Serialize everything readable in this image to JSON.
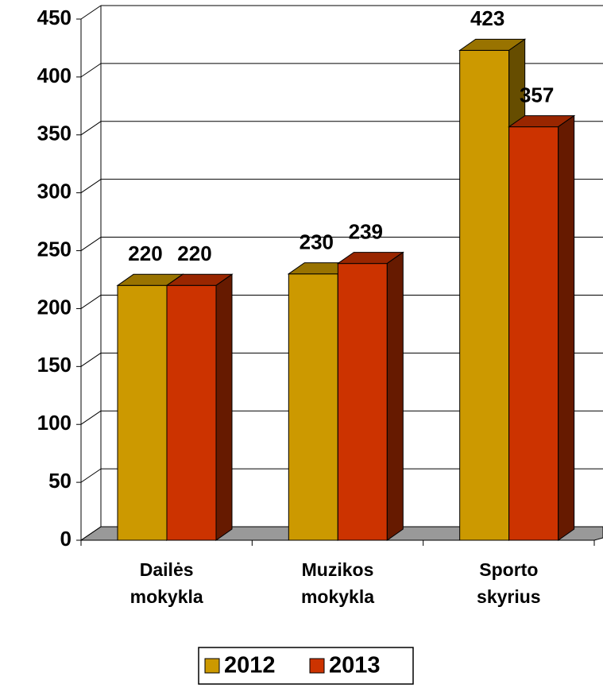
{
  "chart_data": {
    "type": "bar3d",
    "categories": [
      "Dailės mokykla",
      "Muzikos mokykla",
      "Sporto skyrius"
    ],
    "series": [
      {
        "name": "2012",
        "color": "#cc9900",
        "values": [
          220,
          230,
          423
        ]
      },
      {
        "name": "2013",
        "color": "#cc3300",
        "values": [
          220,
          239,
          357
        ]
      }
    ],
    "ylim": [
      0,
      450
    ],
    "yticks": [
      0,
      50,
      100,
      150,
      200,
      250,
      300,
      350,
      400,
      450
    ],
    "grid": true,
    "legend": "bottom"
  }
}
